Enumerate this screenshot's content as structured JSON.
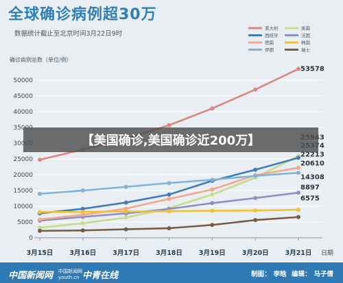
{
  "header": {
    "title": "全球确诊病例超30万",
    "subtitle": "数据统计截止至北京时间3月22日9时"
  },
  "banner": {
    "text": "【美国确诊,美国确诊近200万】"
  },
  "footer": {
    "logo_left": "中国新闻网",
    "logo_sub_top": "中国新闻网",
    "logo_sub_bottom": "youth.cn",
    "logo_right": "中青在线",
    "credit_label_1": "制图：",
    "credit_value_1": "李晗",
    "credit_label_2": "编辑：",
    "credit_value_2": "马子倩"
  },
  "chart_data": {
    "type": "line",
    "ylabel": "确诊病例总数（单位/例）",
    "xlabel": "日期",
    "categories": [
      "3月15日",
      "3月16日",
      "3月17日",
      "3月18日",
      "3月19日",
      "3月20日",
      "3月21日"
    ],
    "yticks": [
      0,
      5000,
      10000,
      15000,
      20000,
      25000,
      30000,
      35000,
      40000,
      45000,
      50000
    ],
    "ylim": [
      0,
      52000
    ],
    "grid": true,
    "legend_position": "top-right",
    "series": [
      {
        "name": "意大利",
        "color": "#d9877f",
        "values": [
          24747,
          27980,
          31506,
          35713,
          41035,
          47021,
          53578
        ],
        "end_label": "53578"
      },
      {
        "name": "美国",
        "color": "#c7dc8a",
        "values": [
          3200,
          4600,
          6400,
          9400,
          13700,
          19100,
          25943
        ],
        "end_label": "25943"
      },
      {
        "name": "西班牙",
        "color": "#3e7cc0",
        "values": [
          7753,
          9191,
          11178,
          13716,
          18077,
          21571,
          25374
        ],
        "end_label": "25374"
      },
      {
        "name": "法国",
        "color": "#8f8fc7",
        "values": [
          5423,
          6633,
          7730,
          9134,
          10995,
          12612,
          14308
        ],
        "end_label": "14308"
      },
      {
        "name": "德国",
        "color": "#f0a98a",
        "values": [
          5813,
          7272,
          9257,
          12327,
          15320,
          19848,
          22213
        ],
        "end_label": "22213"
      },
      {
        "name": "韩国",
        "color": "#f2c12e",
        "values": [
          8162,
          8236,
          8320,
          8413,
          8565,
          8652,
          8897
        ],
        "end_label": "8897"
      },
      {
        "name": "伊朗",
        "color": "#7fb3da",
        "values": [
          13938,
          14991,
          16169,
          17361,
          18407,
          19644,
          20610
        ],
        "end_label": "20610"
      },
      {
        "name": "瑞士",
        "color": "#7a5a45",
        "values": [
          2200,
          2330,
          2700,
          3028,
          4075,
          5615,
          6575
        ],
        "end_label": "6575"
      }
    ]
  }
}
